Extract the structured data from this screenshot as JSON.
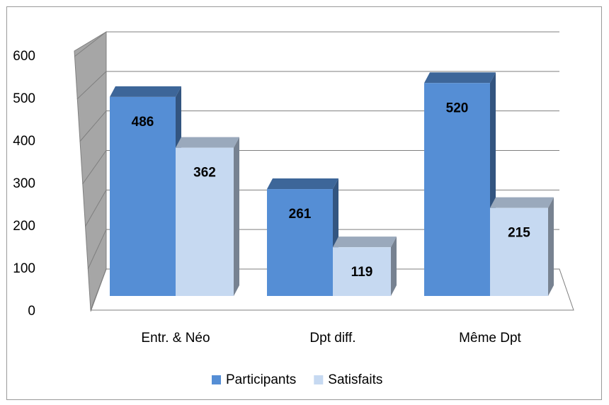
{
  "chart_data": {
    "type": "bar3d",
    "categories": [
      "Entr. & Néo",
      "Dpt diff.",
      "Même Dpt"
    ],
    "series": [
      {
        "name": "Participants",
        "color": "#558ed5",
        "values": [
          486,
          261,
          520
        ]
      },
      {
        "name": "Satisfaits",
        "color": "#c6d9f1",
        "values": [
          362,
          119,
          215
        ]
      }
    ],
    "ylim": [
      0,
      600
    ],
    "yticks": [
      0,
      100,
      200,
      300,
      400,
      500,
      600
    ],
    "grid": true,
    "legend": "bottom"
  }
}
